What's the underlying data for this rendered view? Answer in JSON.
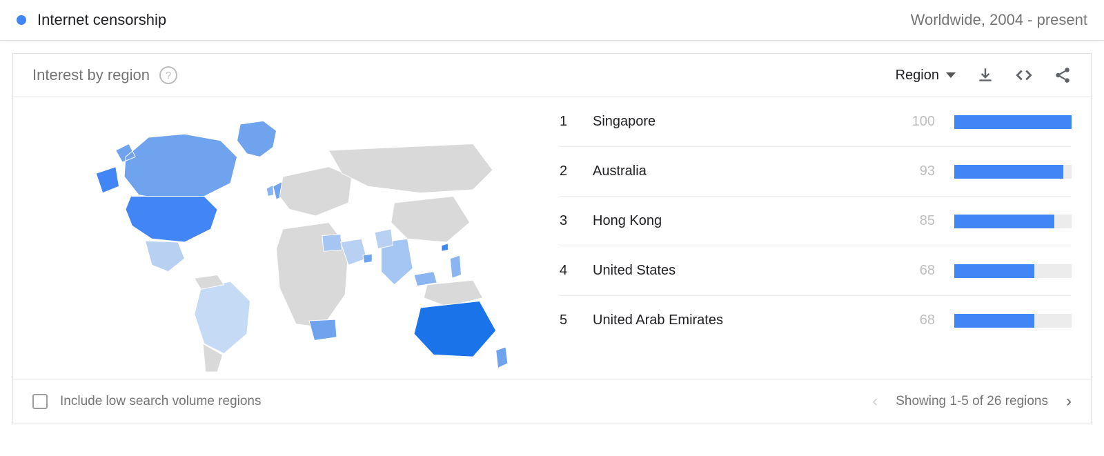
{
  "topic": {
    "dot_color": "#4285f4",
    "label": "Internet censorship",
    "scope": "Worldwide, 2004 - present"
  },
  "card": {
    "title": "Interest by region",
    "region_selector_label": "Region",
    "checkbox_label": "Include low search volume regions",
    "pagination_text": "Showing 1-5 of 26 regions"
  },
  "colors": {
    "bar_fill": "#4285f4",
    "bar_track": "#ececec",
    "map_inactive": "#d9d9d9",
    "map_stroke": "#ffffff"
  },
  "regions": [
    {
      "rank": 1,
      "name": "Singapore",
      "value": 100
    },
    {
      "rank": 2,
      "name": "Australia",
      "value": 93
    },
    {
      "rank": 3,
      "name": "Hong Kong",
      "value": 85
    },
    {
      "rank": 4,
      "name": "United States",
      "value": 68
    },
    {
      "rank": 5,
      "name": "United Arab Emirates",
      "value": 68
    }
  ],
  "map": {
    "highlighted": [
      {
        "name": "usa",
        "color": "#4285f4"
      },
      {
        "name": "canada",
        "color": "#6fa3ee"
      },
      {
        "name": "mexico",
        "color": "#b8d0f2"
      },
      {
        "name": "australia",
        "color": "#1a73e8"
      },
      {
        "name": "newzealand",
        "color": "#6fa3ee"
      },
      {
        "name": "uk",
        "color": "#6fa3ee"
      },
      {
        "name": "ireland",
        "color": "#8bb5f0"
      },
      {
        "name": "india",
        "color": "#a5c5f2"
      },
      {
        "name": "southafrica",
        "color": "#6fa3ee"
      },
      {
        "name": "brazil",
        "color": "#c5daf5"
      },
      {
        "name": "singapore",
        "color": "#1a73e8"
      },
      {
        "name": "hongkong",
        "color": "#4285f4"
      },
      {
        "name": "uae",
        "color": "#6fa3ee"
      },
      {
        "name": "egypt",
        "color": "#a5c5f2"
      },
      {
        "name": "saudiarabia",
        "color": "#b8d0f2"
      },
      {
        "name": "malaysia",
        "color": "#8bb5f0"
      },
      {
        "name": "philippines",
        "color": "#8bb5f0"
      },
      {
        "name": "pakistan",
        "color": "#b8d0f2"
      },
      {
        "name": "greenland",
        "color": "#6fa3ee"
      }
    ]
  }
}
